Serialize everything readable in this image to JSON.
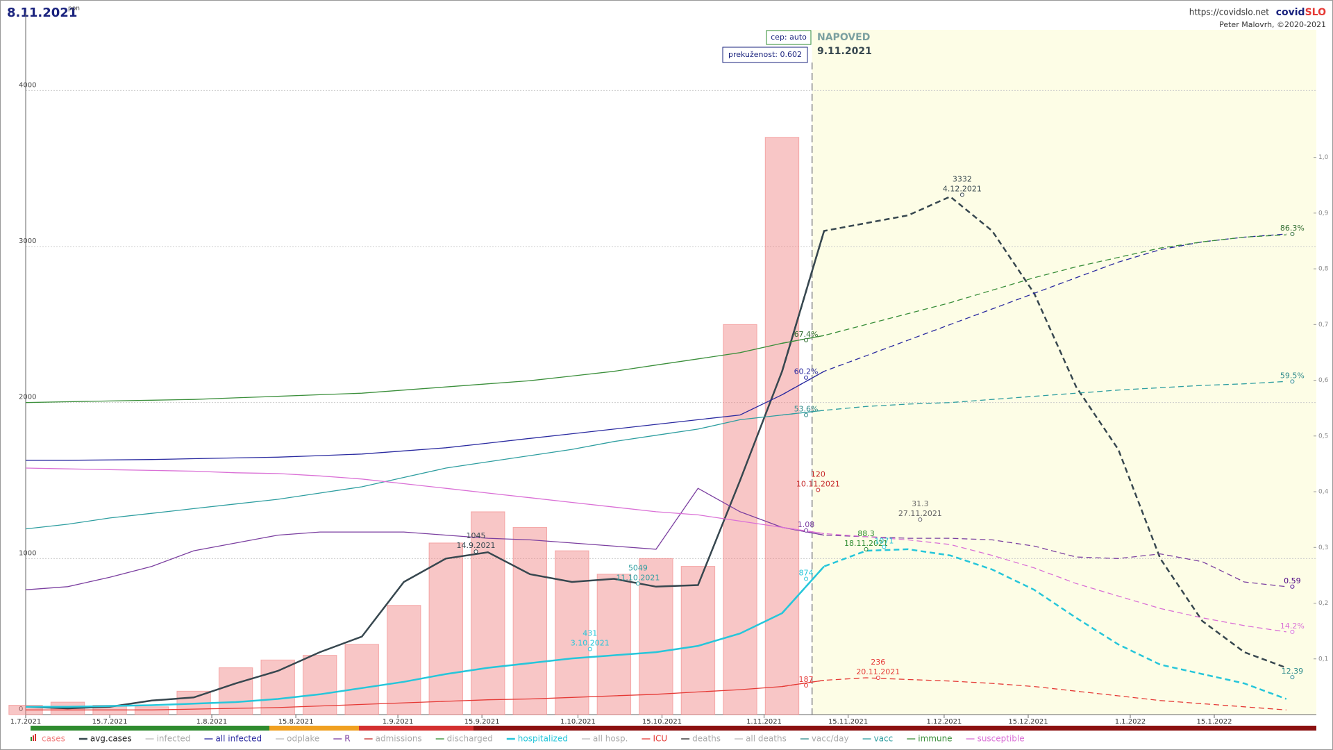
{
  "chart_data": {
    "type": "line",
    "date_label": "8.11.2021",
    "weekday": "pon",
    "url": "https://covidslo.net",
    "brand": {
      "first": "covid",
      "second": "SLO"
    },
    "author": "Peter Malovrh, ©2020-2021",
    "boxes": [
      "cep: auto",
      "prekuženost: 0.602"
    ],
    "forecast": {
      "label": "NAPOVED",
      "date_label": "9.11.2021",
      "start": "2021-11-09"
    },
    "xlim": [
      "2021-07-01",
      "2022-02-01"
    ],
    "xticks": [
      {
        "value": "2021-07-01",
        "label": "1.7.2021"
      },
      {
        "value": "2021-07-15",
        "label": "15.7.2021"
      },
      {
        "value": "2021-08-01",
        "label": "1.8.2021"
      },
      {
        "value": "2021-08-15",
        "label": "15.8.2021"
      },
      {
        "value": "2021-09-01",
        "label": "1.9.2021"
      },
      {
        "value": "2021-09-15",
        "label": "15.9.2021"
      },
      {
        "value": "2021-10-01",
        "label": "1.10.2021"
      },
      {
        "value": "2021-10-15",
        "label": "15.10.2021"
      },
      {
        "value": "2021-11-01",
        "label": "1.11.2021"
      },
      {
        "value": "2021-11-15",
        "label": "15.11.2021"
      },
      {
        "value": "2021-12-01",
        "label": "1.12.2021"
      },
      {
        "value": "2021-12-15",
        "label": "15.12.2021"
      },
      {
        "value": "2022-01-01",
        "label": "1.1.2022"
      },
      {
        "value": "2022-01-15",
        "label": "15.1.2022"
      }
    ],
    "ylim": [
      0,
      4500
    ],
    "yticks": [
      0,
      1000,
      2000,
      3000,
      4000
    ],
    "y2lim": [
      0,
      1.26
    ],
    "y2ticks": [
      {
        "value": 0.1,
        "label": "0,1"
      },
      {
        "value": 0.2,
        "label": "0,2"
      },
      {
        "value": 0.3,
        "label": "0,3"
      },
      {
        "value": 0.4,
        "label": "0,4"
      },
      {
        "value": 0.5,
        "label": "0,5"
      },
      {
        "value": 0.6,
        "label": "0,6"
      },
      {
        "value": 0.7,
        "label": "0,7"
      },
      {
        "value": 0.8,
        "label": "0,8"
      },
      {
        "value": 0.9,
        "label": "0,9"
      },
      {
        "value": 1.0,
        "label": "1,0"
      }
    ],
    "grid": true,
    "x": [
      "2021-07-01",
      "2021-07-08",
      "2021-07-15",
      "2021-07-22",
      "2021-07-29",
      "2021-08-05",
      "2021-08-12",
      "2021-08-19",
      "2021-08-26",
      "2021-09-02",
      "2021-09-09",
      "2021-09-16",
      "2021-09-23",
      "2021-09-30",
      "2021-10-07",
      "2021-10-14",
      "2021-10-21",
      "2021-10-28",
      "2021-11-04",
      "2021-11-11",
      "2021-11-18",
      "2021-11-25",
      "2021-12-02",
      "2021-12-09",
      "2021-12-16",
      "2021-12-23",
      "2021-12-30",
      "2022-01-06",
      "2022-01-13",
      "2022-01-20",
      "2022-01-27"
    ],
    "series": [
      {
        "name": "cases",
        "color": "#f08080",
        "kind": "bar",
        "values": [
          60,
          80,
          60,
          50,
          150,
          300,
          350,
          380,
          450,
          700,
          1100,
          1300,
          1200,
          1050,
          900,
          1000,
          950,
          2500,
          3700,
          null,
          null,
          null,
          null,
          null,
          null,
          null,
          null,
          null,
          null,
          null,
          null
        ]
      },
      {
        "name": "avg.cases",
        "color": "#37474f",
        "kind": "line",
        "width": 2.5,
        "values": [
          50,
          40,
          50,
          90,
          110,
          200,
          280,
          400,
          500,
          850,
          1000,
          1040,
          900,
          850,
          870,
          820,
          830,
          1500,
          2200,
          3100,
          3150,
          3200,
          3320,
          3100,
          2700,
          2100,
          1700,
          1000,
          600,
          400,
          300
        ]
      },
      {
        "name": "infected",
        "color": "#bbbbbb"
      },
      {
        "name": "all infected",
        "color": "#2a2aa0",
        "kind": "line",
        "width": 1.3,
        "values": [
          1630,
          1630,
          1632,
          1635,
          1640,
          1645,
          1650,
          1660,
          1670,
          1690,
          1710,
          1740,
          1770,
          1800,
          1830,
          1860,
          1890,
          1920,
          2050,
          2200,
          2300,
          2400,
          2500,
          2600,
          2700,
          2800,
          2900,
          2980,
          3030,
          3060,
          3080
        ]
      },
      {
        "name": "odplake",
        "color": "#bbbbbb"
      },
      {
        "name": "R",
        "color": "#7b3fa0",
        "kind": "line",
        "width": 1.3,
        "values": [
          800,
          820,
          880,
          950,
          1050,
          1100,
          1150,
          1170,
          1170,
          1170,
          1150,
          1130,
          1120,
          1100,
          1080,
          1060,
          1450,
          1300,
          1200,
          1150,
          1140,
          1130,
          1130,
          1120,
          1080,
          1010,
          1000,
          1030,
          980,
          850,
          820
        ]
      },
      {
        "name": "admissions",
        "color": "#c62828"
      },
      {
        "name": "discharged",
        "color": "#2e8b2e"
      },
      {
        "name": "hospitalized",
        "color": "#26c6da",
        "kind": "line",
        "width": 2.5,
        "values": [
          50,
          50,
          55,
          60,
          70,
          80,
          100,
          130,
          170,
          210,
          260,
          300,
          330,
          360,
          380,
          400,
          440,
          520,
          650,
          950,
          1050,
          1060,
          1020,
          930,
          800,
          620,
          450,
          320,
          260,
          200,
          100
        ]
      },
      {
        "name": "all hosp.",
        "color": "#bbbbbb"
      },
      {
        "name": "ICU",
        "color": "#e53935",
        "kind": "line",
        "width": 1.3,
        "values": [
          30,
          30,
          30,
          30,
          35,
          40,
          45,
          55,
          65,
          75,
          85,
          95,
          100,
          110,
          120,
          130,
          145,
          160,
          180,
          220,
          236,
          225,
          215,
          200,
          180,
          150,
          120,
          90,
          70,
          50,
          30
        ]
      },
      {
        "name": "deaths",
        "color": "#222222"
      },
      {
        "name": "all deaths",
        "color": "#bbbbbb"
      },
      {
        "name": "vacc/day",
        "color": "#2e8b8b"
      },
      {
        "name": "vacc",
        "color": "#2e9ea0",
        "kind": "line",
        "width": 1.3,
        "values": [
          1190,
          1220,
          1260,
          1290,
          1320,
          1350,
          1380,
          1420,
          1460,
          1520,
          1580,
          1620,
          1660,
          1700,
          1750,
          1790,
          1830,
          1890,
          1920,
          1950,
          1975,
          1990,
          2000,
          2020,
          2040,
          2060,
          2080,
          2095,
          2110,
          2120,
          2135
        ]
      },
      {
        "name": "immune",
        "color": "#3b8f3b",
        "kind": "line",
        "width": 1.3,
        "values": [
          2000,
          2005,
          2010,
          2015,
          2020,
          2030,
          2040,
          2050,
          2060,
          2080,
          2100,
          2120,
          2140,
          2170,
          2200,
          2240,
          2280,
          2320,
          2380,
          2430,
          2500,
          2570,
          2640,
          2720,
          2800,
          2870,
          2930,
          2990,
          3030,
          3060,
          3075
        ]
      },
      {
        "name": "susceptible",
        "color": "#da70d6",
        "kind": "line",
        "width": 1.3,
        "values": [
          1580,
          1575,
          1570,
          1565,
          1560,
          1550,
          1545,
          1530,
          1510,
          1480,
          1450,
          1420,
          1390,
          1360,
          1330,
          1300,
          1280,
          1240,
          1200,
          1160,
          1140,
          1120,
          1090,
          1020,
          940,
          840,
          760,
          680,
          620,
          570,
          530
        ]
      }
    ],
    "annotations": [
      {
        "lines": [
          "1045",
          "14.9.2021"
        ],
        "x": "2021-09-14",
        "y": 1045,
        "color": "#37474f"
      },
      {
        "lines": [
          "5049",
          "11.10.2021"
        ],
        "x": "2021-10-11",
        "y": 840,
        "color": "#2e9ea0"
      },
      {
        "lines": [
          "431",
          "3.10.2021"
        ],
        "x": "2021-10-03",
        "y": 420,
        "color": "#26c6da"
      },
      {
        "lines": [
          "3332",
          "4.12.2021"
        ],
        "x": "2021-12-04",
        "y": 3332,
        "color": "#37474f"
      },
      {
        "lines": [
          "120",
          "10.11.2021"
        ],
        "x": "2021-11-10",
        "y": 1440,
        "color": "#c62828"
      },
      {
        "lines": [
          "31.3",
          "27.11.2021"
        ],
        "x": "2021-11-27",
        "y": 1250,
        "color": "#666666"
      },
      {
        "lines": [
          "88.3",
          "18.11.2021"
        ],
        "x": "2021-11-18",
        "y": 1060,
        "color": "#2e8b2e"
      },
      {
        "lines": [
          "1071"
        ],
        "x": "2021-11-21",
        "y": 1075,
        "color": "#26c6da"
      },
      {
        "lines": [
          "236",
          "20.11.2021"
        ],
        "x": "2021-11-20",
        "y": 236,
        "color": "#e53935"
      },
      {
        "lines": [
          "187"
        ],
        "x": "2021-11-08",
        "y": 187,
        "color": "#e53935"
      },
      {
        "lines": [
          "67.4%"
        ],
        "x": "2021-11-08",
        "y": 2400,
        "color": "#2e6b2e"
      },
      {
        "lines": [
          "60.2%"
        ],
        "x": "2021-11-08",
        "y": 2160,
        "color": "#2a2aa0"
      },
      {
        "lines": [
          "53.6%"
        ],
        "x": "2021-11-08",
        "y": 1920,
        "color": "#2e8b8b"
      },
      {
        "lines": [
          "1.08"
        ],
        "x": "2021-11-08",
        "y": 1180,
        "color": "#7b3fa0"
      },
      {
        "lines": [
          "874"
        ],
        "x": "2021-11-08",
        "y": 870,
        "color": "#26c6da"
      },
      {
        "lines": [
          "86.3%"
        ],
        "x": "2022-01-28",
        "y": 3080,
        "color": "#2e6b2e"
      },
      {
        "lines": [
          "59.5%"
        ],
        "x": "2022-01-28",
        "y": 2135,
        "color": "#2e8b8b"
      },
      {
        "lines": [
          "0.59"
        ],
        "x": "2022-01-28",
        "y": 820,
        "color": "#4b0082"
      },
      {
        "lines": [
          "14.2%"
        ],
        "x": "2022-01-28",
        "y": 530,
        "color": "#da70d6"
      },
      {
        "lines": [
          "12.39"
        ],
        "x": "2022-01-28",
        "y": 240,
        "color": "#2e8b8b"
      }
    ]
  }
}
